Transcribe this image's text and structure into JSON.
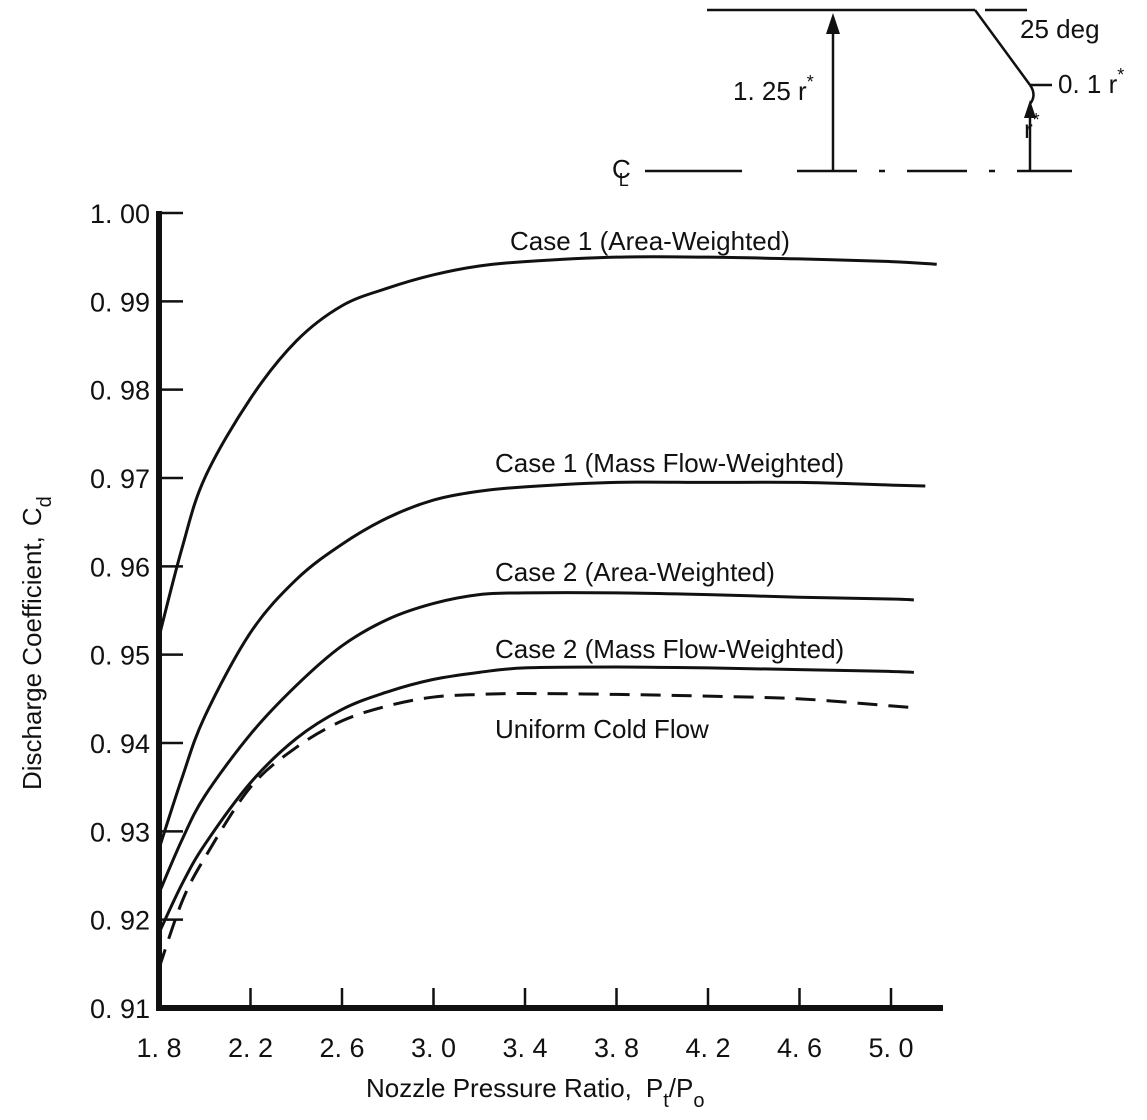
{
  "chart_data": {
    "type": "line",
    "title": "",
    "xlabel": "Nozzle Pressure Ratio,",
    "xlabel_symbol": {
      "P": "P",
      "t": "t",
      "slash": "/",
      "P2": "P",
      "o": "o"
    },
    "ylabel": "Discharge Coefficient,",
    "ylabel_symbol": {
      "C": "C",
      "d": "d"
    },
    "xlim": [
      1.8,
      5.2
    ],
    "ylim": [
      0.91,
      1.0
    ],
    "x_ticks": [
      1.8,
      2.2,
      2.6,
      3.0,
      3.4,
      3.8,
      4.2,
      4.6,
      5.0
    ],
    "x_tick_labels": [
      "1. 8",
      "2. 2",
      "2. 6",
      "3. 0",
      "3. 4",
      "3. 8",
      "4. 2",
      "4. 6",
      "5. 0"
    ],
    "y_ticks": [
      0.91,
      0.92,
      0.93,
      0.94,
      0.95,
      0.96,
      0.97,
      0.98,
      0.99,
      1.0
    ],
    "y_tick_labels": [
      "0. 91",
      "0. 92",
      "0. 93",
      "0. 94",
      "0. 95",
      "0. 96",
      "0. 97",
      "0. 98",
      "0. 99",
      "1. 00"
    ],
    "grid": false,
    "legend": "none",
    "series": [
      {
        "name": "Case 1 (Area-Weighted)",
        "style": "solid",
        "x": [
          1.8,
          1.9,
          2.0,
          2.2,
          2.4,
          2.6,
          2.8,
          3.0,
          3.2,
          3.4,
          3.8,
          4.2,
          4.6,
          5.0,
          5.2
        ],
        "y": [
          0.952,
          0.962,
          0.97,
          0.979,
          0.9855,
          0.9895,
          0.9915,
          0.993,
          0.994,
          0.9945,
          0.995,
          0.995,
          0.9948,
          0.9945,
          0.9942
        ]
      },
      {
        "name": "Case 1 (Mass Flow-Weighted)",
        "style": "solid",
        "x": [
          1.8,
          1.9,
          2.0,
          2.2,
          2.4,
          2.6,
          2.8,
          3.0,
          3.2,
          3.4,
          3.8,
          4.2,
          4.6,
          5.0,
          5.15
        ],
        "y": [
          0.928,
          0.936,
          0.943,
          0.9525,
          0.9585,
          0.9625,
          0.9655,
          0.9675,
          0.9685,
          0.969,
          0.9695,
          0.9695,
          0.9695,
          0.9692,
          0.9691
        ]
      },
      {
        "name": "Case 2 (Area-Weighted)",
        "style": "solid",
        "x": [
          1.8,
          1.9,
          2.0,
          2.2,
          2.4,
          2.6,
          2.8,
          3.0,
          3.2,
          3.4,
          3.8,
          4.2,
          4.6,
          5.0,
          5.1
        ],
        "y": [
          0.923,
          0.929,
          0.934,
          0.941,
          0.9465,
          0.951,
          0.954,
          0.9558,
          0.9568,
          0.957,
          0.957,
          0.9568,
          0.9565,
          0.9563,
          0.9562
        ]
      },
      {
        "name": "Case 2 (Mass Flow-Weighted)",
        "style": "solid",
        "x": [
          1.8,
          1.9,
          2.0,
          2.2,
          2.4,
          2.6,
          2.8,
          3.0,
          3.2,
          3.4,
          3.8,
          4.2,
          4.6,
          5.0,
          5.1
        ],
        "y": [
          0.9185,
          0.924,
          0.9285,
          0.9355,
          0.9405,
          0.9438,
          0.9458,
          0.9472,
          0.948,
          0.9485,
          0.9486,
          0.9485,
          0.9483,
          0.9481,
          0.948
        ]
      },
      {
        "name": "Uniform Cold Flow",
        "style": "dashed",
        "x": [
          1.8,
          1.9,
          2.0,
          2.2,
          2.4,
          2.6,
          2.8,
          3.0,
          3.2,
          3.4,
          3.8,
          4.2,
          4.6,
          5.0,
          5.1
        ],
        "y": [
          0.9145,
          0.922,
          0.927,
          0.935,
          0.9395,
          0.9425,
          0.9442,
          0.9452,
          0.9455,
          0.9456,
          0.9455,
          0.9453,
          0.945,
          0.9442,
          0.944
        ]
      }
    ]
  },
  "inset": {
    "angle_label": "25 deg",
    "lip_label": "0. 1 r",
    "lip_star": "*",
    "radius_label": "1. 25 r",
    "radius_star": "*",
    "throat_label": "r",
    "throat_star": "*",
    "centerline_label": "C",
    "centerline_sub": "L"
  }
}
